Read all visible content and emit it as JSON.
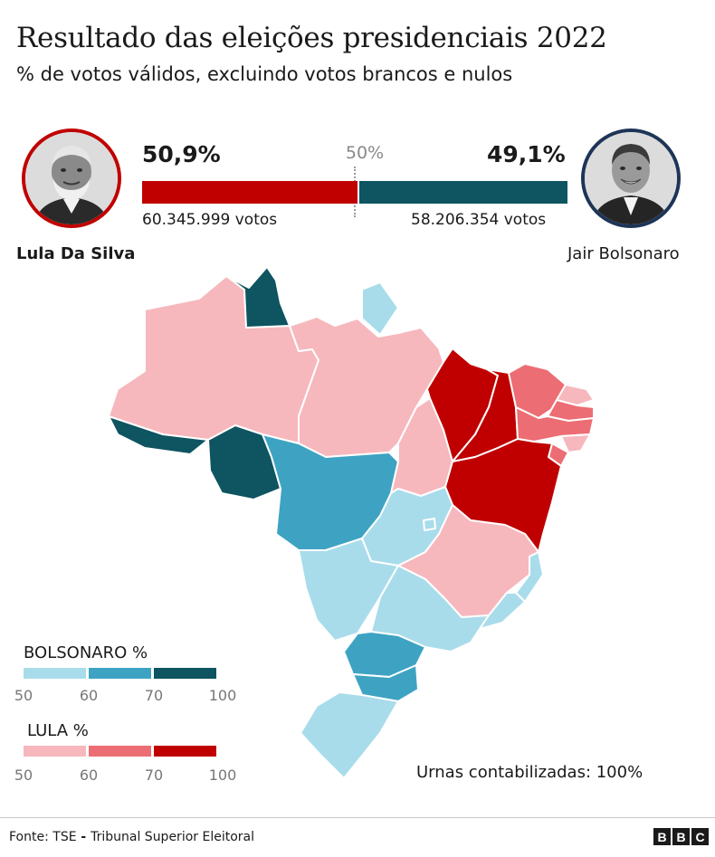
{
  "title": "Resultado das eleições presidenciais 2022",
  "subtitle": "% de votos válidos, excluindo votos brancos e nulos",
  "candidates": {
    "lula": {
      "name": "Lula Da Silva",
      "pct_label": "50,9%",
      "pct_value": 50.9,
      "votes_label": "60.345.999 votos",
      "color": "#c00000"
    },
    "bolsonaro": {
      "name": "Jair Bolsonaro",
      "pct_label": "49,1%",
      "pct_value": 49.1,
      "votes_label": "58.206.354 votos",
      "color": "#0e5461"
    }
  },
  "midpoint_label": "50%",
  "legend": {
    "bolsonaro": {
      "title": "BOLSONARO %",
      "colors": [
        "#a8dceb",
        "#3ea3c2",
        "#0e5461"
      ],
      "ticks": [
        "50",
        "60",
        "70",
        "100"
      ]
    },
    "lula": {
      "title": "LULA %",
      "colors": [
        "#f6b8bd",
        "#ec6d73",
        "#c00000"
      ],
      "ticks": [
        "50",
        "60",
        "70",
        "100"
      ]
    }
  },
  "status_text": "Urnas contabilizadas: 100%",
  "footer": {
    "source_label": "Fonte: TSE",
    "source_separator": " - ",
    "source_name": "Tribunal Superior Eleitoral",
    "logo_letters": [
      "B",
      "B",
      "C"
    ]
  },
  "map_colors": {
    "bolso_light": "#a8dceb",
    "bolso_mid": "#3ea3c2",
    "bolso_dark": "#0e5461",
    "lula_light": "#f6b8bd",
    "lula_mid": "#ec6d73",
    "lula_dark": "#c00000"
  }
}
